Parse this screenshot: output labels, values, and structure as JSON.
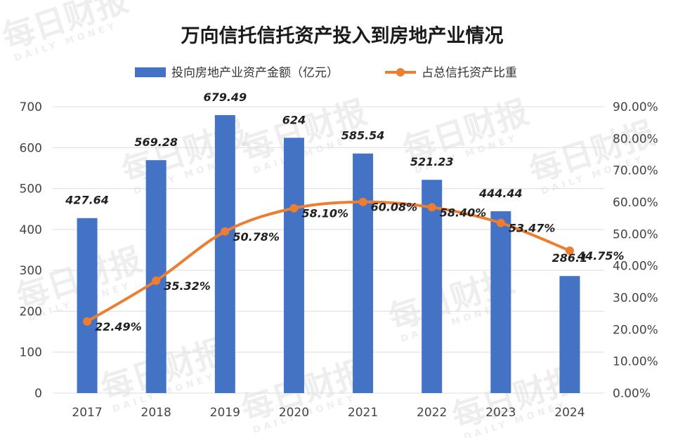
{
  "chart_data": {
    "type": "bar",
    "title": "万向信托信托资产投入到房地产业情况",
    "categories": [
      "2017",
      "2018",
      "2019",
      "2020",
      "2021",
      "2022",
      "2023",
      "2024"
    ],
    "series": [
      {
        "name": "投向房地产业资产金额（亿元）",
        "type": "bar",
        "axis": "left",
        "color": "#4472C4",
        "values": [
          427.64,
          569.28,
          679.49,
          624,
          585.54,
          521.23,
          444.44,
          286.1
        ],
        "labels": [
          "427.64",
          "569.28",
          "679.49",
          "624",
          "585.54",
          "521.23",
          "444.44",
          "286.1"
        ]
      },
      {
        "name": "占总信托资产比重",
        "type": "line",
        "axis": "right",
        "color": "#ED7D31",
        "values": [
          22.49,
          35.32,
          50.78,
          58.1,
          60.08,
          58.4,
          53.47,
          44.75
        ],
        "labels": [
          "22.49%",
          "35.32%",
          "50.78%",
          "58.10%",
          "60.08%",
          "58.40%",
          "53.47%",
          "44.75%"
        ]
      }
    ],
    "y_left": {
      "ylim": [
        0,
        700
      ],
      "ticks": [
        "0",
        "100",
        "200",
        "300",
        "400",
        "500",
        "600",
        "700"
      ]
    },
    "y_right": {
      "ylim": [
        0,
        90
      ],
      "ticks": [
        "0.00%",
        "10.00%",
        "20.00%",
        "30.00%",
        "40.00%",
        "50.00%",
        "60.00%",
        "70.00%",
        "80.00%",
        "90.00%"
      ]
    },
    "grid": true,
    "legend_position": "top-center"
  },
  "watermark": {
    "text": "每日财报",
    "subtext": "DAILY MONEY"
  }
}
